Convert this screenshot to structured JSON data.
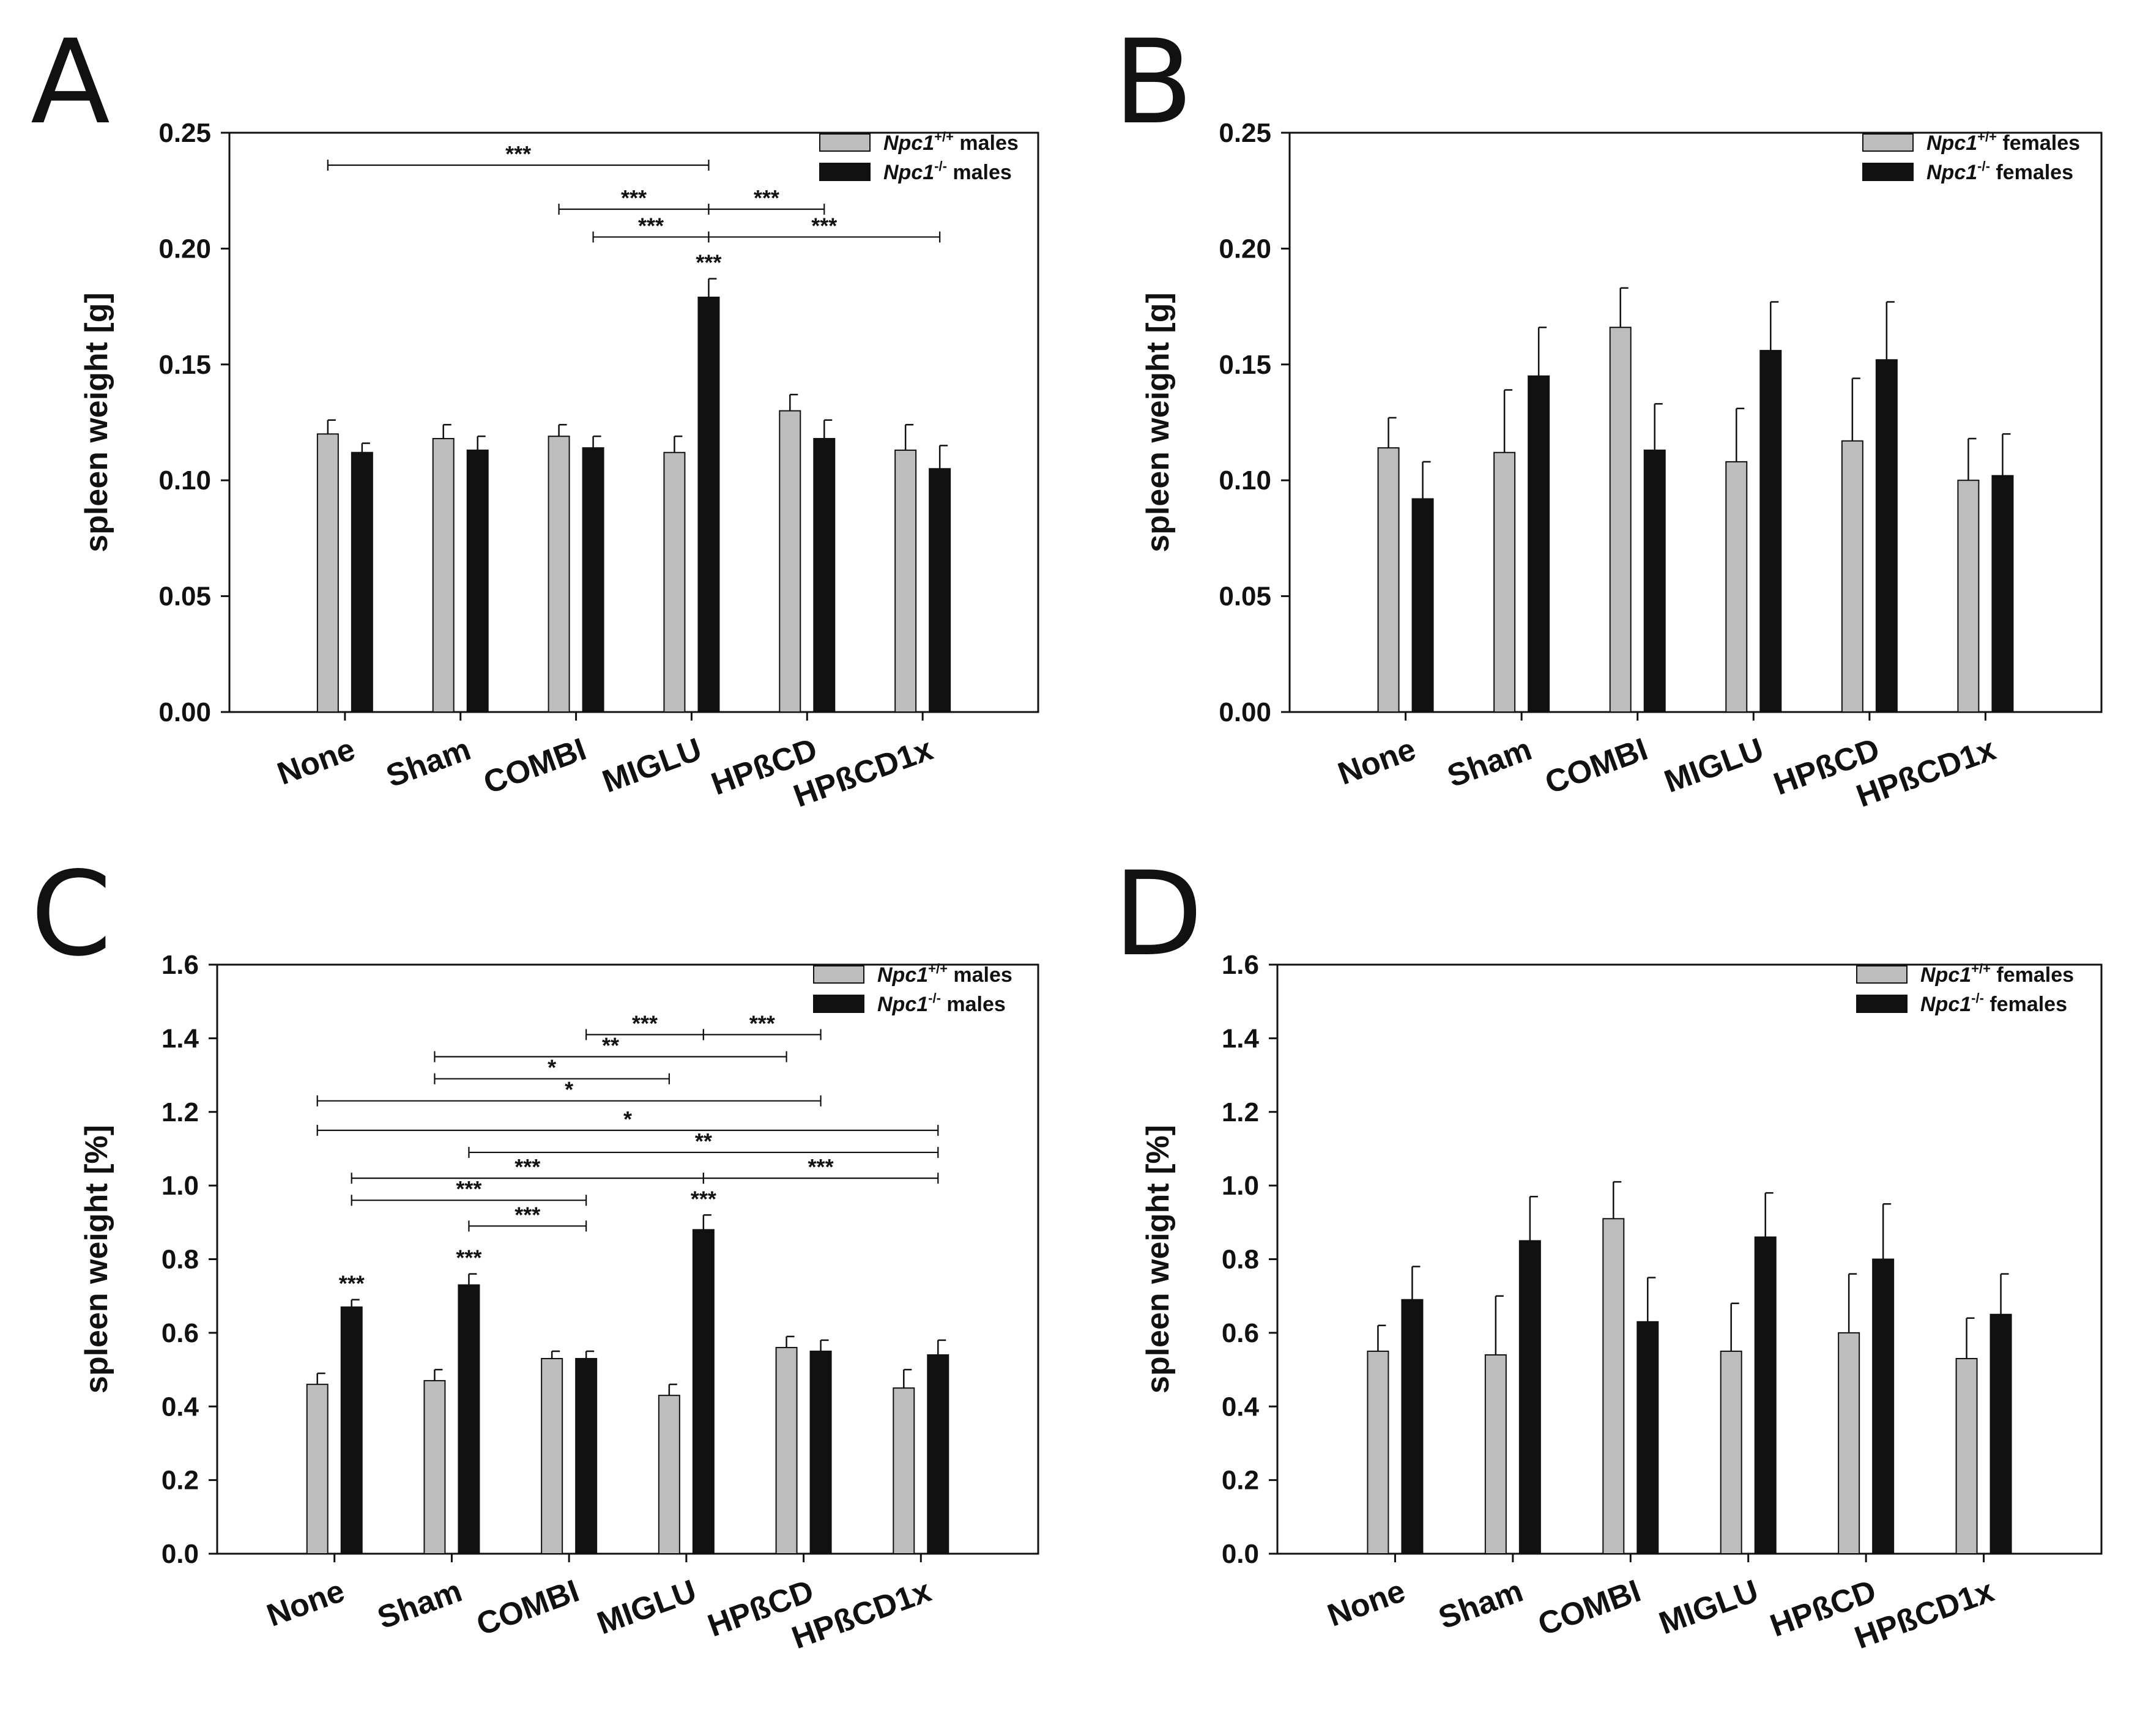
{
  "chart_data": [
    {
      "panel": "A",
      "type": "bar",
      "categories": [
        "None",
        "Sham",
        "COMBI",
        "MIGLU",
        "HPßCD",
        "HPßCD1x"
      ],
      "ylabel": "spleen weight [g]",
      "ylim": [
        0,
        0.25
      ],
      "yticks": [
        "0.00",
        "0.05",
        "0.10",
        "0.15",
        "0.20",
        "0.25"
      ],
      "legend": [
        {
          "name": "Npc1",
          "sup": "+/+",
          "suffix": "males",
          "color": "#bdbdbd"
        },
        {
          "name": "Npc1",
          "sup": "-/-",
          "suffix": "males",
          "color": "#111111"
        }
      ],
      "series": [
        {
          "name": "Npc1+/+ males",
          "values": [
            0.12,
            0.118,
            0.119,
            0.112,
            0.13,
            0.113
          ],
          "errors": [
            0.006,
            0.006,
            0.005,
            0.007,
            0.007,
            0.011
          ]
        },
        {
          "name": "Npc1-/- males",
          "values": [
            0.112,
            0.113,
            0.114,
            0.179,
            0.118,
            0.105
          ],
          "errors": [
            0.004,
            0.006,
            0.005,
            0.008,
            0.008,
            0.01
          ]
        }
      ],
      "bar_stars": [
        {
          "category": 3,
          "series": 1,
          "label": "***"
        }
      ],
      "comparisons": [
        {
          "from": [
            0,
            0
          ],
          "to": [
            3,
            1
          ],
          "y": 0.236,
          "label": "***"
        },
        {
          "from": [
            2,
            0
          ],
          "to": [
            3,
            1
          ],
          "y": 0.217,
          "label": "***"
        },
        {
          "from": [
            3,
            1
          ],
          "to": [
            4,
            1
          ],
          "y": 0.217,
          "label": "***"
        },
        {
          "from": [
            2,
            1
          ],
          "to": [
            3,
            1
          ],
          "y": 0.205,
          "label": "***"
        },
        {
          "from": [
            3,
            1
          ],
          "to": [
            5,
            1
          ],
          "y": 0.205,
          "label": "***"
        }
      ]
    },
    {
      "panel": "B",
      "type": "bar",
      "categories": [
        "None",
        "Sham",
        "COMBI",
        "MIGLU",
        "HPßCD",
        "HPßCD1x"
      ],
      "ylabel": "spleen weight [g]",
      "ylim": [
        0,
        0.25
      ],
      "yticks": [
        "0.00",
        "0.05",
        "0.10",
        "0.15",
        "0.20",
        "0.25"
      ],
      "legend": [
        {
          "name": "Npc1",
          "sup": "+/+",
          "suffix": "females",
          "color": "#bdbdbd"
        },
        {
          "name": "Npc1",
          "sup": "-/-",
          "suffix": "females",
          "color": "#111111"
        }
      ],
      "series": [
        {
          "name": "Npc1+/+ females",
          "values": [
            0.114,
            0.112,
            0.166,
            0.108,
            0.117,
            0.1
          ],
          "errors": [
            0.013,
            0.027,
            0.017,
            0.023,
            0.027,
            0.018
          ]
        },
        {
          "name": "Npc1-/- females",
          "values": [
            0.092,
            0.145,
            0.113,
            0.156,
            0.152,
            0.102
          ],
          "errors": [
            0.016,
            0.021,
            0.02,
            0.021,
            0.025,
            0.018
          ]
        }
      ],
      "bar_stars": [],
      "comparisons": []
    },
    {
      "panel": "C",
      "type": "bar",
      "categories": [
        "None",
        "Sham",
        "COMBI",
        "MIGLU",
        "HPßCD",
        "HPßCD1x"
      ],
      "ylabel": "spleen weight [%]",
      "ylim": [
        0,
        1.6
      ],
      "yticks": [
        "0.0",
        "0.2",
        "0.4",
        "0.6",
        "0.8",
        "1.0",
        "1.2",
        "1.4",
        "1.6"
      ],
      "legend": [
        {
          "name": "Npc1",
          "sup": "+/+",
          "suffix": "males",
          "color": "#bdbdbd"
        },
        {
          "name": "Npc1",
          "sup": "-/-",
          "suffix": "males",
          "color": "#111111"
        }
      ],
      "series": [
        {
          "name": "Npc1+/+ males",
          "values": [
            0.46,
            0.47,
            0.53,
            0.43,
            0.56,
            0.45
          ],
          "errors": [
            0.03,
            0.03,
            0.02,
            0.03,
            0.03,
            0.05
          ]
        },
        {
          "name": "Npc1-/- males",
          "values": [
            0.67,
            0.73,
            0.53,
            0.88,
            0.55,
            0.54
          ],
          "errors": [
            0.02,
            0.03,
            0.02,
            0.04,
            0.03,
            0.04
          ]
        }
      ],
      "bar_stars": [
        {
          "category": 0,
          "series": 1,
          "label": "***"
        },
        {
          "category": 1,
          "series": 1,
          "label": "***"
        },
        {
          "category": 3,
          "series": 1,
          "label": "***"
        }
      ],
      "comparisons": [
        {
          "from": [
            2,
            1
          ],
          "to": [
            3,
            1
          ],
          "y": 1.41,
          "label": "***"
        },
        {
          "from": [
            3,
            1
          ],
          "to": [
            4,
            1
          ],
          "y": 1.41,
          "label": "***"
        },
        {
          "from": [
            1,
            0
          ],
          "to": [
            4,
            0
          ],
          "y": 1.35,
          "label": "**"
        },
        {
          "from": [
            1,
            0
          ],
          "to": [
            3,
            0
          ],
          "y": 1.29,
          "label": "*"
        },
        {
          "from": [
            0,
            0
          ],
          "to": [
            4,
            1
          ],
          "y": 1.23,
          "label": "*"
        },
        {
          "from": [
            0,
            0
          ],
          "to": [
            5,
            1
          ],
          "y": 1.15,
          "label": "*"
        },
        {
          "from": [
            1,
            1
          ],
          "to": [
            5,
            1
          ],
          "y": 1.09,
          "label": "**"
        },
        {
          "from": [
            0,
            1
          ],
          "to": [
            3,
            1
          ],
          "y": 1.02,
          "label": "***"
        },
        {
          "from": [
            3,
            1
          ],
          "to": [
            5,
            1
          ],
          "y": 1.02,
          "label": "***"
        },
        {
          "from": [
            0,
            1
          ],
          "to": [
            2,
            1
          ],
          "y": 0.96,
          "label": "***"
        },
        {
          "from": [
            1,
            1
          ],
          "to": [
            2,
            1
          ],
          "y": 0.89,
          "label": "***"
        }
      ]
    },
    {
      "panel": "D",
      "type": "bar",
      "categories": [
        "None",
        "Sham",
        "COMBI",
        "MIGLU",
        "HPßCD",
        "HPßCD1x"
      ],
      "ylabel": "spleen weight  [%]",
      "ylim": [
        0,
        1.6
      ],
      "yticks": [
        "0.0",
        "0.2",
        "0.4",
        "0.6",
        "0.8",
        "1.0",
        "1.2",
        "1.4",
        "1.6"
      ],
      "legend": [
        {
          "name": "Npc1",
          "sup": "+/+",
          "suffix": "females",
          "color": "#bdbdbd"
        },
        {
          "name": "Npc1",
          "sup": "-/-",
          "suffix": "females",
          "color": "#111111"
        }
      ],
      "series": [
        {
          "name": "Npc1+/+ females",
          "values": [
            0.55,
            0.54,
            0.91,
            0.55,
            0.6,
            0.53
          ],
          "errors": [
            0.07,
            0.16,
            0.1,
            0.13,
            0.16,
            0.11
          ]
        },
        {
          "name": "Npc1-/- females",
          "values": [
            0.69,
            0.85,
            0.63,
            0.86,
            0.8,
            0.65
          ],
          "errors": [
            0.09,
            0.12,
            0.12,
            0.12,
            0.15,
            0.11
          ]
        }
      ],
      "bar_stars": [],
      "comparisons": []
    }
  ]
}
